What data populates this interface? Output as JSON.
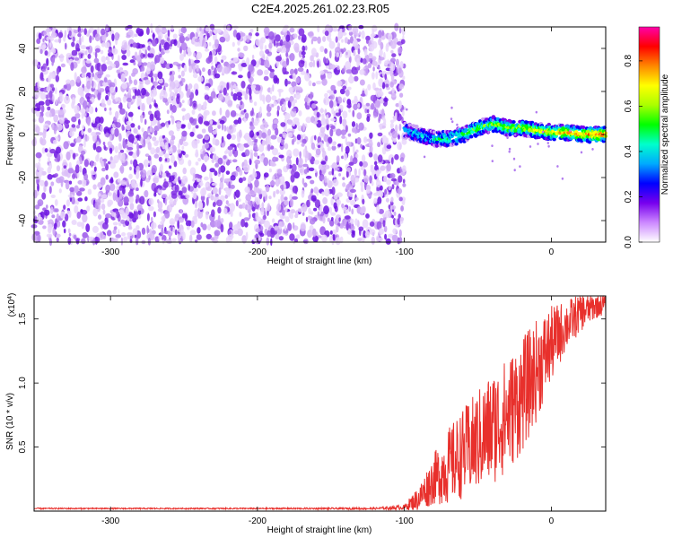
{
  "title": "C2E4.2025.261.02.23.R05",
  "chart_data": [
    {
      "type": "heatmap",
      "xlabel": "Height of straight line (km)",
      "ylabel": "Frequency (Hz)",
      "xlim": [
        -352,
        37
      ],
      "ylim": [
        -50,
        50
      ],
      "xticks": [
        -300,
        -200,
        -100,
        0
      ],
      "yticks": [
        40,
        20,
        0,
        -20,
        -40
      ],
      "noise_region_x": [
        -352,
        -100
      ],
      "signal_region_x": [
        -100,
        37
      ],
      "signal_trace": {
        "x": [
          -100,
          -90,
          -80,
          -70,
          -60,
          -50,
          -40,
          -30,
          -20,
          -10,
          0,
          10,
          20,
          30,
          37
        ],
        "frequency_hz": [
          2,
          0,
          -2,
          -2,
          0,
          3,
          5,
          3,
          3,
          2,
          1,
          1,
          0,
          0,
          0
        ]
      },
      "colorbar": {
        "label": "Normalized spectral amplitude",
        "range": [
          0,
          0.95
        ],
        "ticks": [
          "0.0",
          "0.2",
          "0.4",
          "0.6",
          "0.8"
        ],
        "colors": [
          "#ffffff",
          "#cc88ff",
          "#7700ee",
          "#0000ff",
          "#00aaff",
          "#00ffcc",
          "#00ff00",
          "#aaff00",
          "#ffff00",
          "#ff8800",
          "#ff0000",
          "#ff00aa"
        ]
      }
    },
    {
      "type": "line",
      "xlabel": "Height of straight line (km)",
      "ylabel": "SNR (10 * v/v)",
      "y_multiplier_label": "(x10",
      "y_multiplier_exp": "4",
      "y_multiplier_close": ")",
      "xlim": [
        -352,
        37
      ],
      "ylim": [
        0,
        1.68
      ],
      "xticks": [
        -300,
        -200,
        -100,
        0
      ],
      "yticks": [
        "0.5",
        "1.0",
        "1.5"
      ],
      "series": [
        {
          "color": "#e8302c",
          "x": [
            -352,
            -300,
            -200,
            -120,
            -100,
            -90,
            -80,
            -70,
            -60,
            -50,
            -40,
            -30,
            -20,
            -10,
            0,
            10,
            20,
            30,
            37
          ],
          "y": [
            0.02,
            0.02,
            0.02,
            0.02,
            0.03,
            0.1,
            0.25,
            0.35,
            0.45,
            0.55,
            0.65,
            0.75,
            0.9,
            1.1,
            1.3,
            1.45,
            1.55,
            1.6,
            1.62
          ],
          "y_spread": [
            0.005,
            0.005,
            0.005,
            0.008,
            0.02,
            0.1,
            0.2,
            0.3,
            0.35,
            0.4,
            0.45,
            0.45,
            0.45,
            0.4,
            0.3,
            0.2,
            0.15,
            0.1,
            0.08
          ]
        }
      ]
    }
  ]
}
